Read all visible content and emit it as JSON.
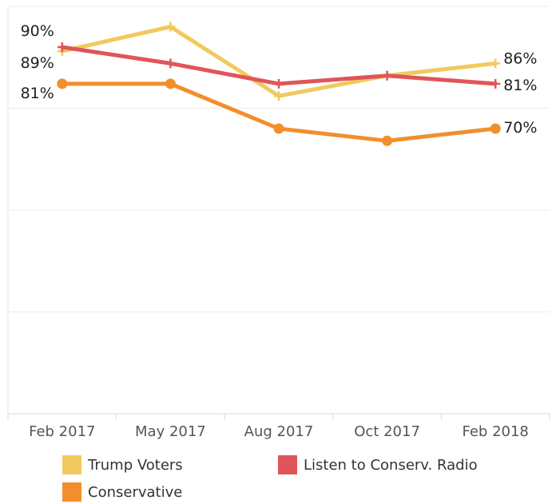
{
  "chart_data": {
    "type": "line",
    "categories": [
      "Feb 2017",
      "May 2017",
      "Aug 2017",
      "Oct 2017",
      "Feb 2018"
    ],
    "ylim": [
      0,
      100
    ],
    "grid": true,
    "legend_position": "bottom",
    "series": [
      {
        "name": "Trump Voters",
        "color": "#F0CA5E",
        "marker": "plus",
        "values": [
          89,
          95,
          78,
          83,
          86
        ],
        "start_label": "89%",
        "end_label": "86%"
      },
      {
        "name": "Listen to Conserv. Radio",
        "color": "#E05559",
        "marker": "plus",
        "values": [
          90,
          86,
          81,
          83,
          81
        ],
        "start_label": "90%",
        "end_label": "81%"
      },
      {
        "name": "Conservative",
        "color": "#F28E2C",
        "marker": "circle",
        "values": [
          81,
          81,
          70,
          67,
          70
        ],
        "start_label": "81%",
        "end_label": "70%"
      }
    ]
  }
}
